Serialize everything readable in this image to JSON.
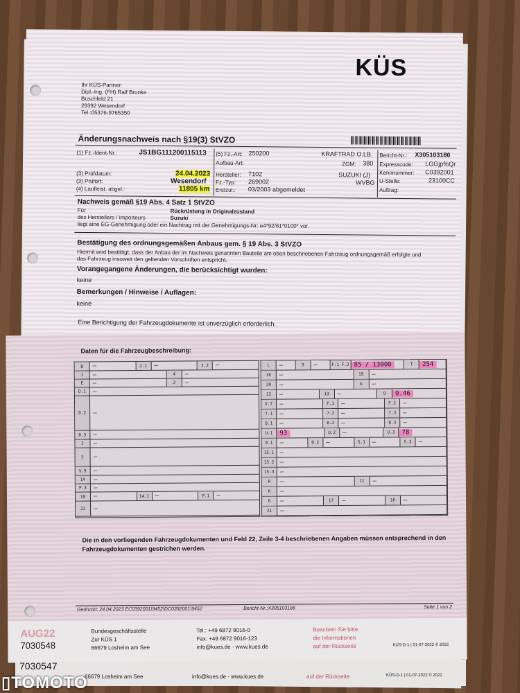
{
  "header": {
    "logo": "KÜS",
    "partner": [
      "Ihr KÜS-Partner:",
      "Dipl.-Ing. (FH) Ralf Brunke",
      "Buschfeld 21",
      "29392 Wesendorf",
      "Tel.:05376-9765350"
    ]
  },
  "title": "Änderungsnachweis nach §19(3) StVZO",
  "vehicle": {
    "ident_label": "(1) Fz.-Ident-Nr.:",
    "ident": "JS1BG111200115113",
    "pruefdatum_label": "(3) Prüfdatum:",
    "pruefdatum": "24.04.2023",
    "pruefort_label": "(3) Prüfort:",
    "pruefort": "Wesendorf",
    "laufleistung_label": "(4) Laufleist. abgel.:",
    "laufleistung": "11805 km",
    "fzart_label": "(5) Fz.-Art:",
    "fzart": "250200",
    "fzart_text": "KRAFTRAD O.LB.",
    "aufbau_label": "Aufbau-Art:",
    "zgm_label": "ZGM:",
    "zgm": "380",
    "hersteller_label": "Hersteller:",
    "hersteller": "7102",
    "hersteller_text": "SUZUKI (J)",
    "fztyp_label": "Fz.-Typ:",
    "fztyp": "269002",
    "fztyp_text": "WVBG",
    "erstzul_label": "Erstzul.:",
    "erstzul": "03/2003  abgemeldet",
    "bericht_label": "Bericht-Nr.:",
    "bericht": "X305103186",
    "express_label": "Expresscode:",
    "express": "LGGjp%Qr",
    "kenn_label": "Kennnummer:",
    "kenn": "C0392001",
    "ustelle_label": "U-Stelle:",
    "ustelle": "23100CC",
    "auftrag_label": "Auftrag:"
  },
  "nachweis": {
    "title": "Nachweis gemäß §19 Abs. 4 Satz 1 StVZO",
    "fuer_label": "Für",
    "fuer": "Rückrüstung in Originalzustand",
    "herst_label": "des Herstellers / Importeurs",
    "herst": "Suzuki",
    "text": "liegt eine EG-Genehmigung oder ein Nachtrag mit der Genehmigungs-Nr: e4*92/61*0100* vor."
  },
  "bestaetigung": {
    "title": "Bestätigung des ordnungsgemäßen Anbaus gem. § 19 Abs. 3 StVZO",
    "text": "Hiermit wird bestätigt, dass der Anbau der im Nachweis genannten Bauteile am oben beschriebenen Fahrzeug ordnungsgemäß erfolgte und das Fahrzeug insoweit den geltenden Vorschriften entspricht.",
    "vorang_title": "Vorangegangene Änderungen, die berücksichtigt wurden:",
    "vorang": "keine",
    "bem_title": "Bemerkungen / Hinweise / Auflagen:",
    "bem": "keine",
    "berichtigung": "Eine Berichtigung der Fahrzeugdokumente ist unverzüglich erforderlich."
  },
  "daten_title": "Daten für die Fahrzeugbeschreibung:",
  "left_table": [
    [
      [
        "B",
        "–"
      ],
      [
        "2.1",
        "–"
      ],
      [
        "2.2",
        "–"
      ]
    ],
    [
      [
        "J",
        "–"
      ],
      [
        "4",
        "–"
      ]
    ],
    [
      [
        "E",
        "–"
      ],
      [
        "3",
        "–"
      ]
    ],
    [
      [
        "D.1",
        "–"
      ]
    ],
    [
      [
        "D.2",
        "–"
      ]
    ],
    [
      [
        "D.3",
        "–"
      ]
    ],
    [
      [
        "2",
        "–"
      ]
    ],
    [
      [
        "5",
        "–"
      ]
    ],
    [
      [
        "V.9",
        "–"
      ]
    ],
    [
      [
        "14",
        "–"
      ]
    ],
    [
      [
        "P.3",
        "–"
      ]
    ],
    [
      [
        "10",
        "–"
      ],
      [
        "14.1",
        "–"
      ],
      [
        "P.1",
        "–"
      ]
    ],
    [
      [
        "22",
        "–"
      ]
    ]
  ],
  "right_table": [
    [
      [
        "L",
        "–"
      ],
      [
        "9",
        "–"
      ],
      [
        "F.1 F.2",
        "85 / 13000",
        true
      ],
      [
        "T",
        "254",
        true
      ]
    ],
    [
      [
        "18",
        "–"
      ],
      [
        "19",
        "–"
      ]
    ],
    [
      [
        "20",
        "–"
      ],
      [
        "G",
        "–"
      ]
    ],
    [
      [
        "12",
        "–"
      ],
      [
        "13",
        "–"
      ],
      [
        "Q",
        "0.46",
        true
      ]
    ],
    [
      [
        "V.7",
        "–"
      ],
      [
        "F.1",
        "–"
      ],
      [
        "F.2",
        "–"
      ]
    ],
    [
      [
        "7.1",
        "–"
      ],
      [
        "7.2",
        "–"
      ],
      [
        "7.3",
        "–"
      ]
    ],
    [
      [
        "8.1",
        "–"
      ],
      [
        "8.2",
        "–"
      ],
      [
        "8.3",
        "–"
      ]
    ],
    [
      [
        "U.1",
        "93",
        true
      ],
      [
        "U.2",
        "–"
      ],
      [
        "U.3",
        "78",
        true
      ]
    ],
    [
      [
        "0.1",
        "–"
      ],
      [
        "0.2",
        "–"
      ],
      [
        "S.1",
        "–"
      ],
      [
        "S.2",
        "–"
      ]
    ],
    [
      [
        "15.1",
        "–"
      ]
    ],
    [
      [
        "15.2",
        "–"
      ]
    ],
    [
      [
        "15.3",
        "–"
      ]
    ],
    [
      [
        "R",
        "–"
      ],
      [
        "11",
        "–"
      ]
    ],
    [
      [
        "K",
        "–"
      ]
    ],
    [
      [
        "6",
        "–"
      ],
      [
        "17",
        "–"
      ],
      [
        "16",
        "–"
      ]
    ],
    [
      [
        "21",
        "–"
      ]
    ]
  ],
  "streichung": "Die in den vorliegenden Fahrzeugdokumenten und Feld 22, Zeile 3-4 beschriebenen Angaben müssen entsprechend in den Fahrzeugdokumenten gestrichen werden.",
  "print_footer": {
    "gedruckt": "Gedruckt: 24.04.2023   EC0392001\\9452\\DC0392001\\9452",
    "bericht": "Bericht-Nr.:X305103186",
    "seite": "Seite 1 von 2"
  },
  "footer": {
    "code": "AUG22",
    "num": "7030548",
    "addr": [
      "Bundesgeschäftsstelle",
      "Zur KÜS 1",
      "66679 Losheim am See"
    ],
    "contact": [
      "Tel.:  +49 6872 9016-0",
      "Fax:  +49 6872 9016-123",
      "info@kues.de · www.kues.de"
    ],
    "hint": [
      "Beachten Sie bitte",
      "die Informationen",
      "auf der Rückseite"
    ],
    "form": "KÜS-D-1 | 01-07-2022    © 2022"
  },
  "footer2": {
    "num": "7030547",
    "addr": "66679 Losheim am See",
    "contact": "info@kues.de · www.kues.de",
    "hint": "auf der Rückseite",
    "form": "KÜS-D-1 | 01-07-2022    © 2022"
  },
  "watermark": "OTOMOTO",
  "colors": {
    "highlight": "#f2f53a",
    "marker": "#f050aa",
    "hint": "#c0506a"
  }
}
